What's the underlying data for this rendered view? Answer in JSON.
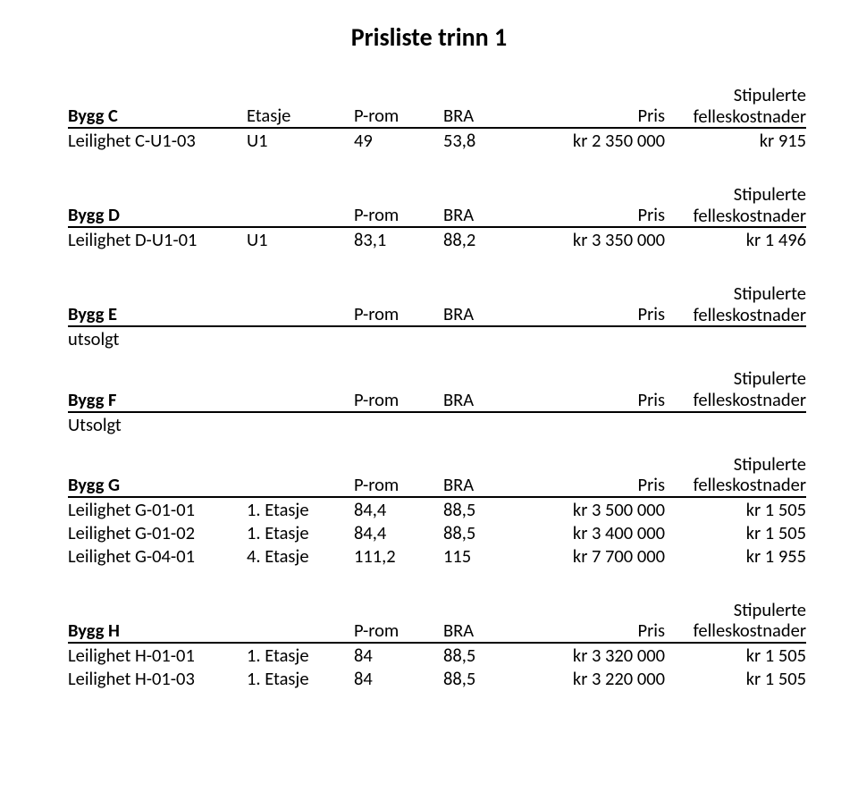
{
  "title": "Prisliste trinn 1",
  "common": {
    "stip": "Stipulerte",
    "fk": "felleskostnader",
    "col_et": "Etasje",
    "col_prom": "P-rom",
    "col_bra": "BRA",
    "col_pris": "Pris"
  },
  "sections": {
    "C": {
      "label": "Bygg C",
      "show_etasje": true,
      "rows": [
        {
          "name": "Leilighet C-U1-03",
          "et": "U1",
          "prom": "49",
          "bra": "53,8",
          "pris": "kr 2 350 000",
          "fk": "kr 915"
        }
      ]
    },
    "D": {
      "label": "Bygg D",
      "show_etasje": false,
      "rows": [
        {
          "name": "Leilighet D-U1-01",
          "et": "U1",
          "prom": "83,1",
          "bra": "88,2",
          "pris": "kr 3 350 000",
          "fk": "kr 1 496"
        }
      ]
    },
    "E": {
      "label": "Bygg E",
      "show_etasje": false,
      "status": "utsolgt",
      "rows": []
    },
    "F": {
      "label": "Bygg F",
      "show_etasje": false,
      "status": "Utsolgt",
      "rows": []
    },
    "G": {
      "label": "Bygg G",
      "show_etasje": false,
      "rows": [
        {
          "name": "Leilighet G-01-01",
          "et": "1. Etasje",
          "prom": "84,4",
          "bra": "88,5",
          "pris": "kr 3 500 000",
          "fk": "kr 1 505"
        },
        {
          "name": "Leilighet G-01-02",
          "et": "1. Etasje",
          "prom": "84,4",
          "bra": "88,5",
          "pris": "kr 3 400 000",
          "fk": "kr 1 505"
        },
        {
          "name": "Leilighet G-04-01",
          "et": "4. Etasje",
          "prom": "111,2",
          "bra": "115",
          "pris": "kr 7 700 000",
          "fk": "kr 1 955"
        }
      ]
    },
    "H": {
      "label": "Bygg H",
      "show_etasje": false,
      "rows": [
        {
          "name": "Leilighet H-01-01",
          "et": "1. Etasje",
          "prom": "84",
          "bra": "88,5",
          "pris": "kr 3 320 000",
          "fk": "kr 1 505"
        },
        {
          "name": "Leilighet H-01-03",
          "et": "1. Etasje",
          "prom": "84",
          "bra": "88,5",
          "pris": "kr 3 220 000",
          "fk": "kr 1 505"
        }
      ]
    }
  }
}
